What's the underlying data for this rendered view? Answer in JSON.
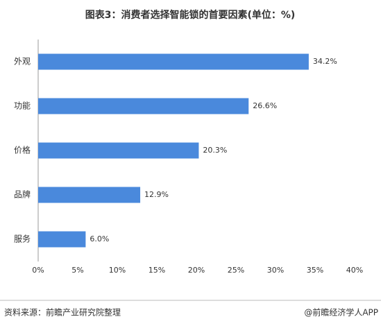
{
  "chart_data": {
    "type": "hbar",
    "title": "图表3：消费者选择智能锁的首要因素(单位：%)",
    "categories": [
      "外观",
      "功能",
      "价格",
      "品牌",
      "服务"
    ],
    "values": [
      34.2,
      26.6,
      20.3,
      12.9,
      6.0
    ],
    "value_labels": [
      "34.2%",
      "26.6%",
      "20.3%",
      "12.9%",
      "6.0%"
    ],
    "color": "#4a89dc",
    "xlim": [
      0,
      40
    ],
    "xticks": [
      {
        "value": 0,
        "label": "0%"
      },
      {
        "value": 5,
        "label": "5%"
      },
      {
        "value": 10,
        "label": "10%"
      },
      {
        "value": 15,
        "label": "15%"
      },
      {
        "value": 20,
        "label": "20%"
      },
      {
        "value": 25,
        "label": "25%"
      },
      {
        "value": 30,
        "label": "30%"
      },
      {
        "value": 35,
        "label": "35%"
      },
      {
        "value": 40,
        "label": "40%"
      }
    ],
    "source": "资料来源：前瞻产业研究院整理",
    "credit": "@前瞻经济学人APP"
  }
}
